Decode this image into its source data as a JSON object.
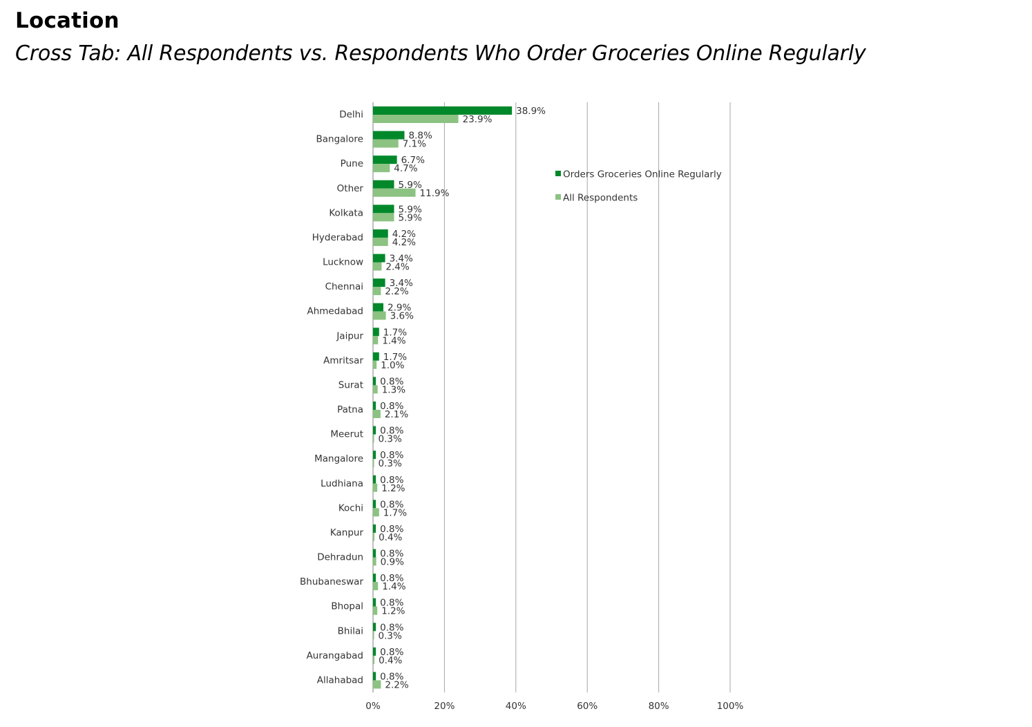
{
  "header": {
    "title": "Location",
    "subtitle": "Cross Tab: All Respondents vs. Respondents Who Order Groceries Online Regularly"
  },
  "chart_data": {
    "type": "bar",
    "orientation": "horizontal",
    "categories": [
      "Delhi",
      "Bangalore",
      "Pune",
      "Other",
      "Kolkata",
      "Hyderabad",
      "Lucknow",
      "Chennai",
      "Ahmedabad",
      "Jaipur",
      "Amritsar",
      "Surat",
      "Patna",
      "Meerut",
      "Mangalore",
      "Ludhiana",
      "Kochi",
      "Kanpur",
      "Dehradun",
      "Bhubaneswar",
      "Bhopal",
      "Bhilai",
      "Aurangabad",
      "Allahabad"
    ],
    "series": [
      {
        "name": "Orders Groceries Online Regularly",
        "color": "#00882b",
        "values": [
          38.9,
          8.8,
          6.7,
          5.9,
          5.9,
          4.2,
          3.4,
          3.4,
          2.9,
          1.7,
          1.7,
          0.8,
          0.8,
          0.8,
          0.8,
          0.8,
          0.8,
          0.8,
          0.8,
          0.8,
          0.8,
          0.8,
          0.8,
          0.8
        ],
        "labels": [
          "38.9%",
          "8.8%",
          "6.7%",
          "5.9%",
          "5.9%",
          "4.2%",
          "3.4%",
          "3.4%",
          "2.9%",
          "1.7%",
          "1.7%",
          "0.8%",
          "0.8%",
          "0.8%",
          "0.8%",
          "0.8%",
          "0.8%",
          "0.8%",
          "0.8%",
          "0.8%",
          "0.8%",
          "0.8%",
          "0.8%",
          "0.8%"
        ]
      },
      {
        "name": "All Respondents",
        "color": "#8cc282",
        "values": [
          23.9,
          7.1,
          4.7,
          11.9,
          5.9,
          4.2,
          2.4,
          2.2,
          3.6,
          1.4,
          1.0,
          1.3,
          2.1,
          0.3,
          0.3,
          1.2,
          1.7,
          0.4,
          0.9,
          1.4,
          1.2,
          0.3,
          0.4,
          2.2
        ],
        "labels": [
          "23.9%",
          "7.1%",
          "4.7%",
          "11.9%",
          "5.9%",
          "4.2%",
          "2.4%",
          "2.2%",
          "3.6%",
          "1.4%",
          "1.0%",
          "1.3%",
          "2.1%",
          "0.3%",
          "0.3%",
          "1.2%",
          "1.7%",
          "0.4%",
          "0.9%",
          "1.4%",
          "1.2%",
          "0.3%",
          "0.4%",
          "2.2%"
        ]
      }
    ],
    "xlim": [
      0,
      100
    ],
    "x_ticks": [
      0,
      20,
      40,
      60,
      80,
      100
    ],
    "x_tick_labels": [
      "0%",
      "20%",
      "40%",
      "60%",
      "80%",
      "100%"
    ],
    "grid": "vertical",
    "legend_position": "right"
  }
}
